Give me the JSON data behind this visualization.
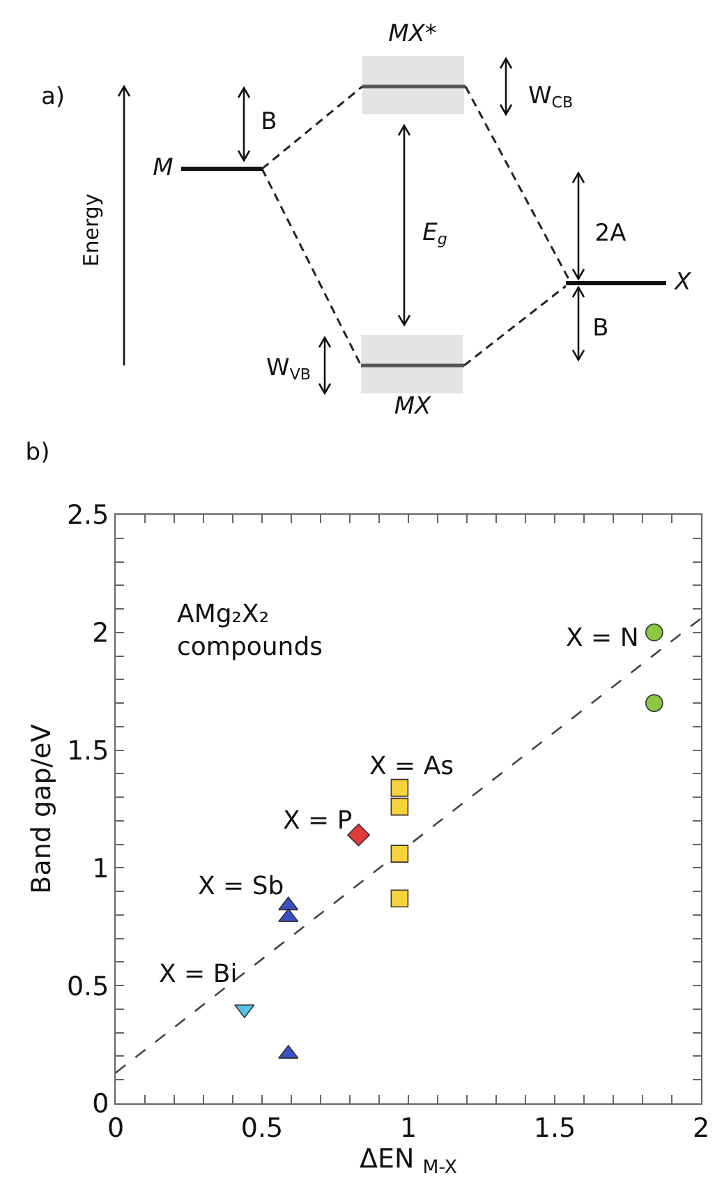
{
  "chart_data": [
    {
      "type": "other",
      "title": "a)",
      "annotations": [
        "Energy",
        "M",
        "B",
        "MX*",
        "W$_{CB}$",
        "E$_{g}$",
        "2A",
        "X",
        "B",
        "W$_{VB}$",
        "MX"
      ]
    },
    {
      "type": "scatter",
      "title": "b)",
      "xlabel": "ΔEN $_{M-X}$",
      "ylabel": "Band gap/eV",
      "grid": false,
      "xlim": [
        0,
        2
      ],
      "ylim": [
        0,
        2.5
      ],
      "xticks": [
        0,
        {
          "value": 0.1,
          "label": null
        },
        {
          "value": 0.2,
          "label": null
        },
        {
          "value": 0.3,
          "label": null
        },
        {
          "value": 0.4,
          "label": null
        },
        0.5,
        {
          "value": 0.6,
          "label": null
        },
        {
          "value": 0.7,
          "label": null
        },
        {
          "value": 0.8,
          "label": null
        },
        {
          "value": 0.9,
          "label": null
        },
        1,
        {
          "value": 1.1,
          "label": null
        },
        {
          "value": 1.2,
          "label": null
        },
        {
          "value": 1.3,
          "label": null
        },
        {
          "value": 1.4,
          "label": null
        },
        1.5,
        {
          "value": 1.6,
          "label": null
        },
        {
          "value": 1.7,
          "label": null
        },
        {
          "value": 1.8,
          "label": null
        },
        {
          "value": 1.9,
          "label": null
        },
        2
      ],
      "yticks": [
        0,
        {
          "value": 0.1,
          "label": null
        },
        {
          "value": 0.2,
          "label": null
        },
        {
          "value": 0.3,
          "label": null
        },
        {
          "value": 0.4,
          "label": null
        },
        0.5,
        {
          "value": 0.6,
          "label": null
        },
        {
          "value": 0.7,
          "label": null
        },
        {
          "value": 0.8,
          "label": null
        },
        {
          "value": 0.9,
          "label": null
        },
        1,
        {
          "value": 1.1,
          "label": null
        },
        {
          "value": 1.2,
          "label": null
        },
        {
          "value": 1.3,
          "label": null
        },
        {
          "value": 1.4,
          "label": null
        },
        1.5,
        {
          "value": 1.6,
          "label": null
        },
        {
          "value": 1.7,
          "label": null
        },
        {
          "value": 1.8,
          "label": null
        },
        {
          "value": 1.9,
          "label": null
        },
        2,
        {
          "value": 2.1,
          "label": null
        },
        {
          "value": 2.2,
          "label": null
        },
        {
          "value": 2.3,
          "label": null
        },
        {
          "value": 2.4,
          "label": null
        },
        2.5
      ],
      "series": [
        {
          "type": "line",
          "color": "#444444",
          "line_style": "dashed",
          "marker": "none",
          "x": [
            0,
            2
          ],
          "values": [
            0.13,
            2.06
          ]
        },
        {
          "color": "#8dc63f",
          "marker": "circle",
          "x": [
            1.84,
            1.84
          ],
          "values": [
            2.0,
            1.7
          ]
        },
        {
          "color": "#f9d23c",
          "marker": "square",
          "x": [
            0.97,
            0.97,
            0.97,
            0.97
          ],
          "values": [
            1.34,
            1.26,
            1.06,
            0.87
          ]
        },
        {
          "color": "#e03a3a",
          "marker": "diamond",
          "x": [
            0.83
          ],
          "values": [
            1.14
          ]
        },
        {
          "color": "#3a4fc4",
          "marker": "triangle",
          "x": [
            0.59,
            0.59,
            0.59
          ],
          "values": [
            0.84,
            0.79,
            0.21
          ]
        },
        {
          "color": "#4fc3e8",
          "marker": "triangle-down",
          "x": [
            0.44
          ],
          "values": [
            0.4
          ]
        }
      ],
      "annotations": [
        "AMg₂X₂\ncompounds",
        "X = N",
        "X = As",
        "X = P",
        "X = Sb",
        "X = Bi"
      ]
    }
  ]
}
